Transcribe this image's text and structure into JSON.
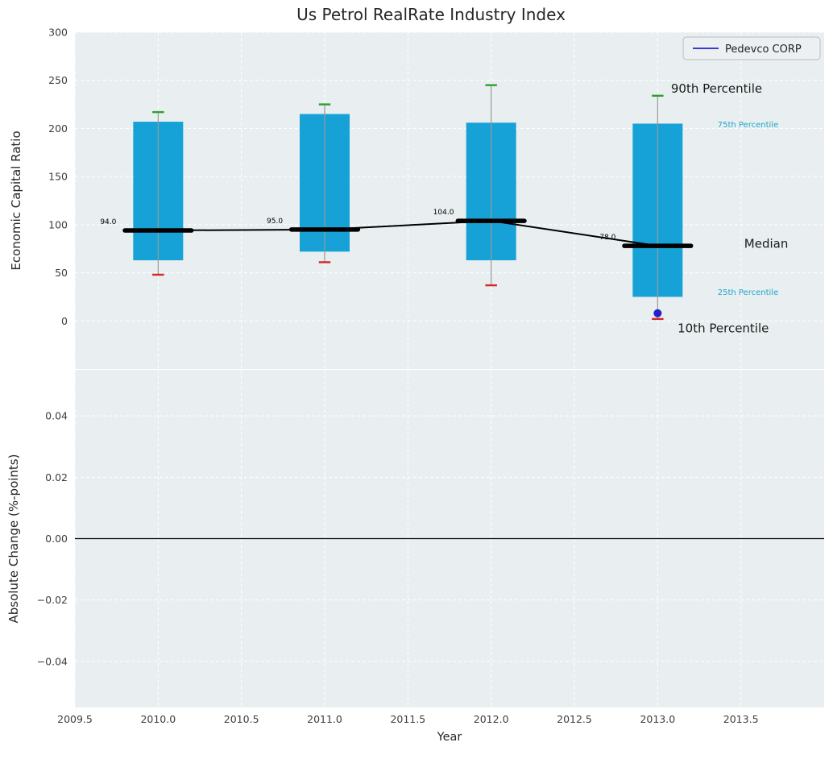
{
  "colors": {
    "figure_bg": "#ffffff",
    "axes_bg": "#e9eff0",
    "grid": "#ffffff",
    "bar": "#16a2d7",
    "whisker": "#999999",
    "cap_90": "#2ca02c",
    "cap_10": "#d62728",
    "median": "#000000",
    "company": "#2222cc",
    "tick_text": "#3d3d3d",
    "label_text": "#262626",
    "percentile_text": "#1fa6c9",
    "legend_bg": "#edf0f2",
    "legend_border": "#b9bdc1"
  },
  "chart_data": [
    {
      "type": "bar",
      "subtype": "percentile-box-with-median-line",
      "title": "Us Petrol RealRate Industry Index",
      "ylabel": "Economic Capital Ratio",
      "xlim": [
        2009.5,
        2014.0
      ],
      "ylim": [
        -50,
        300
      ],
      "yticks": [
        0,
        50,
        100,
        150,
        200,
        250,
        300
      ],
      "ytick_labels": [
        "0",
        "50",
        "100",
        "150",
        "200",
        "250",
        "300"
      ],
      "grid": true,
      "categories": [
        2010,
        2011,
        2012,
        2013
      ],
      "series": [
        {
          "name": "90th Percentile",
          "values": [
            217,
            225,
            245,
            234
          ]
        },
        {
          "name": "75th Percentile",
          "values": [
            207,
            215,
            206,
            205
          ]
        },
        {
          "name": "Median",
          "values": [
            94,
            95,
            104,
            78
          ]
        },
        {
          "name": "25th Percentile",
          "values": [
            63,
            72,
            63,
            25
          ]
        },
        {
          "name": "10th Percentile",
          "values": [
            48,
            61,
            37,
            2
          ]
        }
      ],
      "median_labels": [
        "94.0",
        "95.0",
        "104.0",
        "78.0"
      ],
      "company_point": {
        "label": "Pedevco CORP",
        "x": 2013,
        "y": 8
      },
      "legend": {
        "label": "Pedevco CORP",
        "position": "upper right"
      },
      "annotations": [
        {
          "text": "90th Percentile",
          "x": 2013.08,
          "y": 237,
          "color": "#1a1a1a",
          "size": 15
        },
        {
          "text": "75th Percentile",
          "x": 2013.36,
          "y": 201,
          "color": "#1fa6c9",
          "size": 10
        },
        {
          "text": "Median",
          "x": 2013.52,
          "y": 76,
          "color": "#1a1a1a",
          "size": 15
        },
        {
          "text": "25th Percentile",
          "x": 2013.36,
          "y": 27,
          "color": "#1fa6c9",
          "size": 10
        },
        {
          "text": "10th Percentile",
          "x": 2013.12,
          "y": -12,
          "color": "#1a1a1a",
          "size": 15
        }
      ]
    },
    {
      "type": "line",
      "ylabel": "Absolute Change (%-points)",
      "xlabel": "Year",
      "xlim": [
        2009.5,
        2014.0
      ],
      "ylim": [
        -0.055,
        0.055
      ],
      "yticks": [
        -0.04,
        -0.02,
        0,
        0.02,
        0.04
      ],
      "ytick_labels": [
        "−0.04",
        "−0.02",
        "0.00",
        "0.02",
        "0.04"
      ],
      "xticks": [
        2009.5,
        2010,
        2010.5,
        2011,
        2011.5,
        2012,
        2012.5,
        2013,
        2013.5
      ],
      "xtick_labels": [
        "2009.5",
        "2010.0",
        "2010.5",
        "2011.0",
        "2011.5",
        "2012.0",
        "2012.5",
        "2013.0",
        "2013.5"
      ],
      "grid": true,
      "zero_line": 0.0,
      "series": []
    }
  ]
}
